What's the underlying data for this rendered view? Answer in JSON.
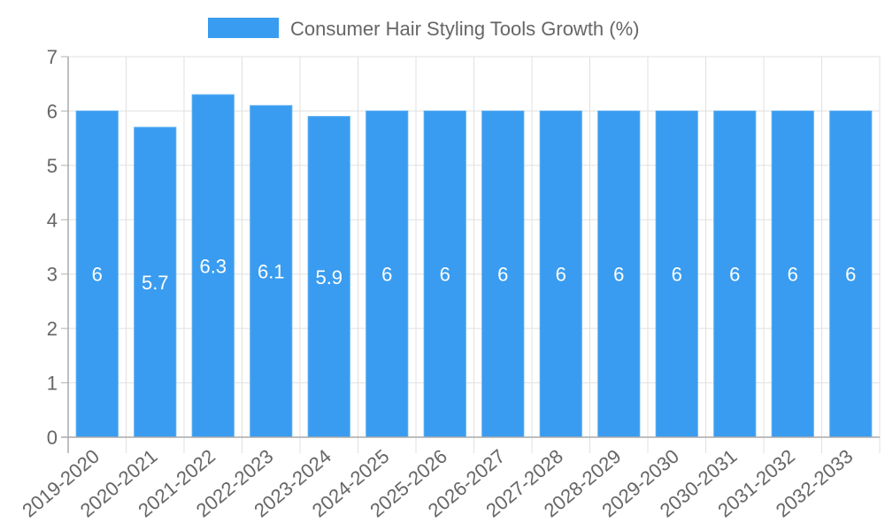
{
  "chart_data": {
    "type": "bar",
    "title": "",
    "legend": [
      {
        "label": "Consumer Hair Styling Tools Growth (%)",
        "color": "#399cf0"
      }
    ],
    "legend_position": "top",
    "categories": [
      "2019-2020",
      "2020-2021",
      "2021-2022",
      "2022-2023",
      "2023-2024",
      "2024-2025",
      "2025-2026",
      "2026-2027",
      "2027-2028",
      "2028-2029",
      "2029-2030",
      "2030-2031",
      "2031-2032",
      "2032-2033"
    ],
    "series": [
      {
        "name": "Consumer Hair Styling Tools Growth (%)",
        "color": "#399cf0",
        "values": [
          6,
          5.7,
          6.3,
          6.1,
          5.9,
          6,
          6,
          6,
          6,
          6,
          6,
          6,
          6,
          6
        ]
      }
    ],
    "data_labels": [
      "6",
      "5.7",
      "6.3",
      "6.1",
      "5.9",
      "6",
      "6",
      "6",
      "6",
      "6",
      "6",
      "6",
      "6",
      "6"
    ],
    "xlabel": "",
    "ylabel": "",
    "ylim": [
      0,
      7
    ],
    "yticks": [
      "0",
      "1",
      "2",
      "3",
      "4",
      "5",
      "6",
      "7"
    ],
    "grid": true
  }
}
